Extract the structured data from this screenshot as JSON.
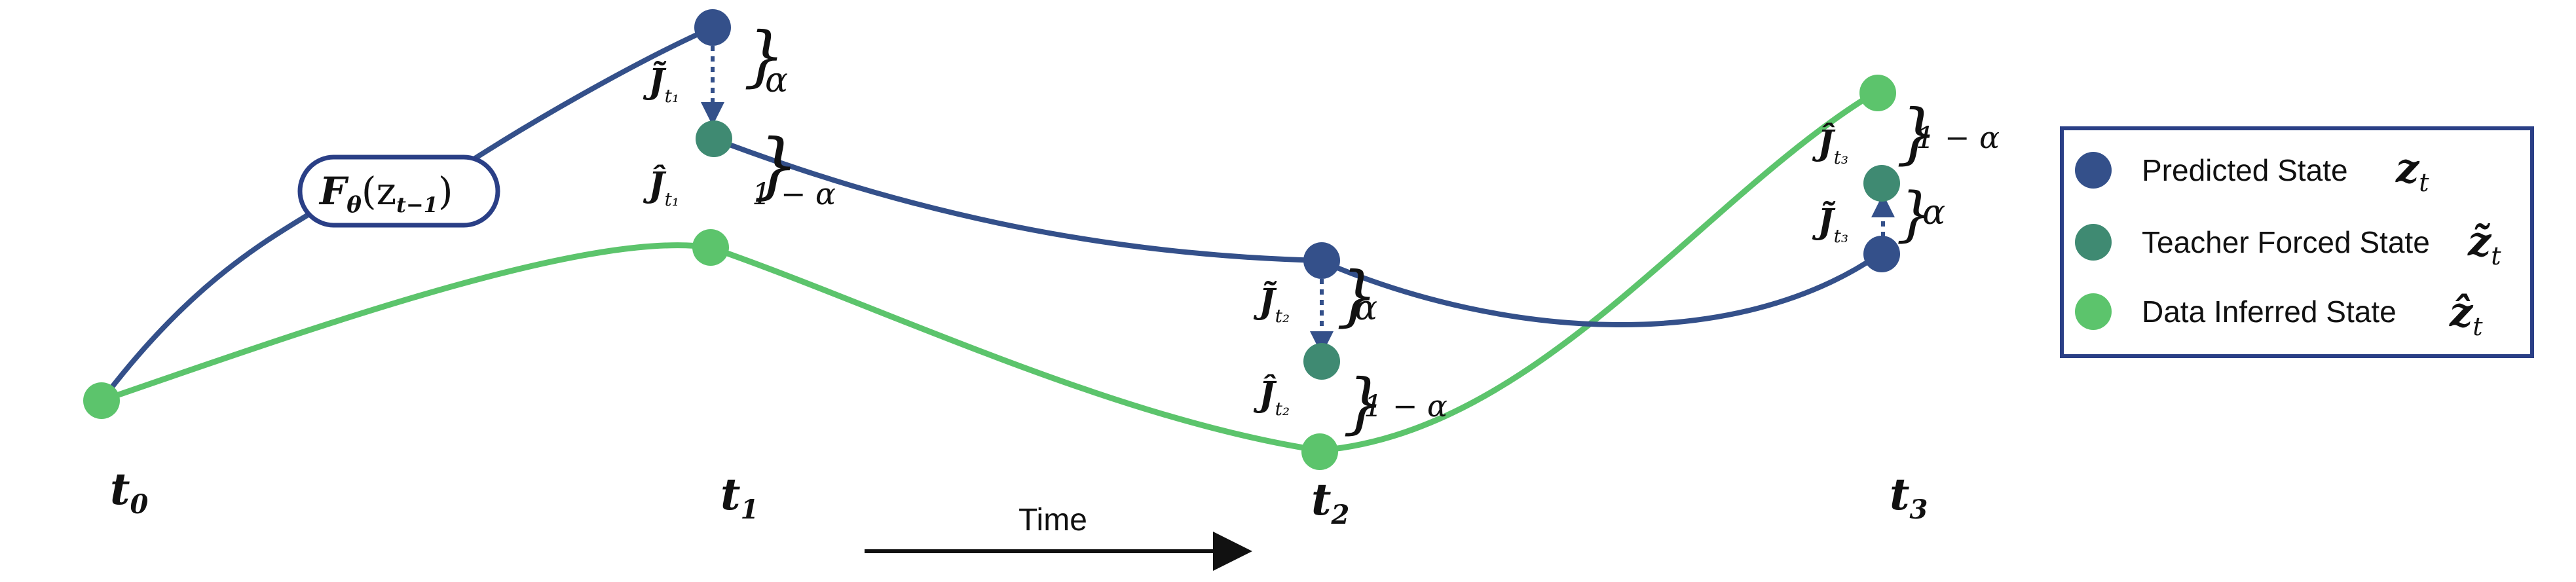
{
  "colors": {
    "predicted": "#34508a",
    "teacher": "#3f8a72",
    "inferred": "#5cc46c",
    "legend_border": "#2a3f86",
    "arrow": "#111111"
  },
  "function_label": {
    "symbol": "F",
    "subscript": "θ",
    "argument": "(z",
    "argument_sub": "t−1",
    "close": ")"
  },
  "time_labels": [
    {
      "base": "t",
      "sub": "0"
    },
    {
      "base": "t",
      "sub": "1"
    },
    {
      "base": "t",
      "sub": "2"
    },
    {
      "base": "t",
      "sub": "3"
    }
  ],
  "time_arrow_label": "Time",
  "jacobians": {
    "tilde_t1": {
      "base": "J̃",
      "sub": "t₁"
    },
    "hat_t1": {
      "base": "Ĵ",
      "sub": "t₁"
    },
    "tilde_t2": {
      "base": "J̃",
      "sub": "t₂"
    },
    "hat_t2": {
      "base": "Ĵ",
      "sub": "t₂"
    },
    "hat_t3": {
      "base": "Ĵ",
      "sub": "t₃"
    },
    "tilde_t3": {
      "base": "J̃",
      "sub": "t₃"
    }
  },
  "weights": {
    "alpha": "α",
    "one_minus_alpha": "1 − α"
  },
  "legend": [
    {
      "label": "Predicted State",
      "symbol": "z",
      "sub": "t",
      "color_key": "predicted"
    },
    {
      "label": "Teacher Forced State",
      "symbol": "z̃",
      "sub": "t",
      "color_key": "teacher"
    },
    {
      "label": "Data Inferred State",
      "symbol": "ẑ",
      "sub": "t",
      "color_key": "inferred"
    }
  ]
}
